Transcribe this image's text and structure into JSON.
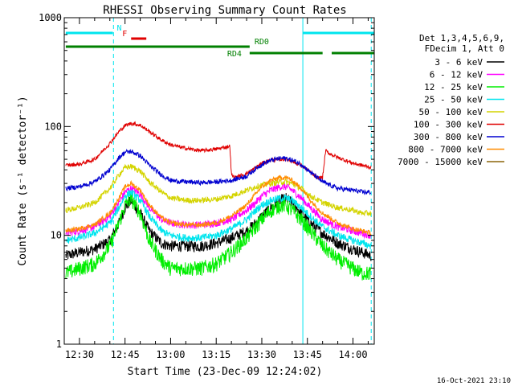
{
  "chart_data": {
    "type": "line",
    "title": "RHESSI Observing Summary Count Rates",
    "xlabel": "Start Time (23-Dec-09 12:24:02)",
    "ylabel": "Count Rate (s⁻¹ detector⁻¹)",
    "yscale": "log",
    "ylim": [
      1,
      1000
    ],
    "xlim_minutes_from_start": [
      -5.0,
      97.0
    ],
    "x_ticks": [
      {
        "label": "12:30",
        "t": 0
      },
      {
        "label": "12:45",
        "t": 15
      },
      {
        "label": "13:00",
        "t": 30
      },
      {
        "label": "13:15",
        "t": 45
      },
      {
        "label": "13:30",
        "t": 60
      },
      {
        "label": "13:45",
        "t": 75
      },
      {
        "label": "14:00",
        "t": 90
      }
    ],
    "y_ticks": [
      {
        "label": "1",
        "v": 1
      },
      {
        "label": "10",
        "v": 10
      },
      {
        "label": "100",
        "v": 100
      },
      {
        "label": "1000",
        "v": 1000
      }
    ],
    "legend": {
      "header": [
        "Det 1,3,4,5,6,9,",
        "FDecim 1, Att 0"
      ],
      "position": "right"
    },
    "annotations": {
      "timestamp": "16-Oct-2021 23:10",
      "flags": [
        {
          "label": "N",
          "color": "#00e5ee",
          "segments": [
            [
              -4.5,
              11
            ],
            [
              73.5,
              97
            ]
          ]
        },
        {
          "label": "F",
          "color": "#e00000",
          "segments": [
            [
              17,
              22
            ]
          ]
        },
        {
          "label": "RD0",
          "color": "#008000",
          "segments": [
            [
              -4.5,
              56
            ]
          ]
        },
        {
          "label": "RD4",
          "color": "#008000",
          "segments": [
            [
              56,
              80
            ],
            [
              83,
              97
            ]
          ]
        }
      ],
      "vlines_dashed": [
        11.2,
        96
      ],
      "vlines_solid": [
        73.5
      ]
    },
    "series": [
      {
        "name": "3 - 6 keV",
        "color": "#000000",
        "x": [
          -4.5,
          0,
          5,
          10,
          13,
          15,
          17,
          20,
          23,
          27,
          30,
          35,
          40,
          45,
          50,
          55,
          58,
          60,
          63,
          66,
          68,
          70,
          73,
          76,
          80,
          85,
          90,
          93,
          96
        ],
        "y": [
          6.5,
          7,
          7.5,
          9,
          13,
          18,
          21,
          16,
          11,
          8.5,
          8,
          8,
          8,
          8.5,
          9.5,
          11,
          13,
          15,
          18,
          21,
          22,
          20,
          16,
          13,
          10.5,
          8.5,
          7.5,
          7,
          6.5
        ]
      },
      {
        "name": "6 - 12 keV",
        "color": "#ff00ff",
        "x": [
          -4.5,
          0,
          5,
          10,
          13,
          15,
          17,
          20,
          23,
          27,
          30,
          35,
          40,
          45,
          50,
          55,
          58,
          60,
          63,
          66,
          68,
          70,
          73,
          76,
          80,
          85,
          90,
          93,
          96
        ],
        "y": [
          10.5,
          11,
          12,
          15,
          20,
          25,
          27,
          24,
          18,
          14,
          13,
          12.5,
          12.5,
          13,
          14,
          17,
          20,
          23,
          26,
          28,
          28,
          26,
          22,
          18,
          14,
          12,
          11,
          10.5,
          10
        ]
      },
      {
        "name": "12 - 25 keV",
        "color": "#00ee00",
        "x": [
          -4.5,
          0,
          5,
          10,
          13,
          15,
          17,
          20,
          23,
          27,
          30,
          35,
          40,
          45,
          50,
          55,
          58,
          60,
          63,
          66,
          68,
          70,
          73,
          76,
          80,
          85,
          90,
          93,
          96
        ],
        "y": [
          4.5,
          5,
          5.5,
          8,
          13,
          19,
          22,
          16,
          9,
          6,
          5,
          5,
          5,
          5.5,
          7,
          9.5,
          12,
          14,
          17,
          19,
          19,
          17,
          14,
          11,
          8,
          6,
          5,
          4.5,
          4.5
        ]
      },
      {
        "name": "25 - 50 keV",
        "color": "#00e5ee",
        "x": [
          -4.5,
          0,
          5,
          10,
          13,
          15,
          17,
          20,
          23,
          27,
          30,
          35,
          40,
          45,
          50,
          55,
          58,
          60,
          63,
          66,
          68,
          70,
          73,
          76,
          80,
          85,
          90,
          93,
          96
        ],
        "y": [
          9,
          9.5,
          10.5,
          13,
          18,
          23,
          25,
          21,
          15,
          11,
          10,
          9.5,
          9.5,
          10,
          11.5,
          14,
          17,
          19,
          21,
          22,
          22,
          21,
          18,
          15,
          12,
          10,
          9,
          8.5,
          8
        ]
      },
      {
        "name": "50 - 100 keV",
        "color": "#d4d400",
        "x": [
          -4.5,
          0,
          5,
          10,
          13,
          15,
          17,
          20,
          23,
          27,
          30,
          35,
          40,
          45,
          50,
          55,
          58,
          60,
          63,
          66,
          68,
          70,
          73,
          76,
          80,
          85,
          90,
          93,
          96
        ],
        "y": [
          17,
          18,
          20,
          27,
          36,
          42,
          43,
          39,
          31,
          25,
          22,
          21,
          21,
          21.5,
          23,
          26,
          28,
          29,
          30,
          31,
          31,
          30,
          27,
          23,
          20,
          18,
          17,
          16,
          16
        ]
      },
      {
        "name": "100 - 300 keV",
        "color": "#e00000",
        "x": [
          -4.5,
          0,
          5,
          10,
          13,
          15,
          17,
          20,
          23,
          27,
          30,
          35,
          40,
          45,
          49.5,
          50,
          51,
          55,
          58,
          60,
          63,
          66,
          68,
          70,
          73,
          76,
          78,
          80,
          81,
          82,
          85,
          90,
          93,
          96
        ],
        "y": [
          44,
          45,
          50,
          70,
          90,
          102,
          107,
          103,
          90,
          75,
          68,
          63,
          60,
          62,
          66,
          36,
          34,
          37,
          42,
          46,
          49,
          50,
          50,
          48,
          44,
          38,
          34,
          34,
          60,
          57,
          52,
          46,
          44,
          42
        ]
      },
      {
        "name": "300 - 800 keV",
        "color": "#0000d0",
        "x": [
          -4.5,
          0,
          5,
          10,
          13,
          15,
          17,
          20,
          23,
          27,
          30,
          35,
          40,
          45,
          50,
          55,
          58,
          60,
          63,
          66,
          68,
          70,
          73,
          76,
          80,
          85,
          90,
          93,
          96
        ],
        "y": [
          27,
          28,
          31,
          40,
          52,
          58,
          59,
          54,
          44,
          36,
          32,
          31,
          30.5,
          31,
          32,
          35,
          41,
          45,
          49,
          51,
          51,
          49,
          45,
          38,
          31,
          27,
          26,
          25,
          25
        ]
      },
      {
        "name": "800 - 7000 keV",
        "color": "#ff8c00",
        "x": [
          -4.5,
          0,
          5,
          10,
          13,
          15,
          17,
          20,
          23,
          27,
          30,
          35,
          40,
          45,
          50,
          55,
          58,
          60,
          63,
          66,
          68,
          70,
          73,
          76,
          80,
          85,
          90,
          93,
          96
        ],
        "y": [
          11,
          11.5,
          12.5,
          16,
          22,
          28,
          30,
          26,
          19,
          14.5,
          13,
          12.5,
          12.5,
          13,
          15,
          19,
          24,
          28,
          32,
          34,
          34,
          32,
          27,
          21,
          16,
          13,
          11.5,
          11,
          10.5
        ]
      },
      {
        "name": "7000 - 15000 keV",
        "color": "#8b6508",
        "x": [],
        "y": []
      }
    ]
  }
}
